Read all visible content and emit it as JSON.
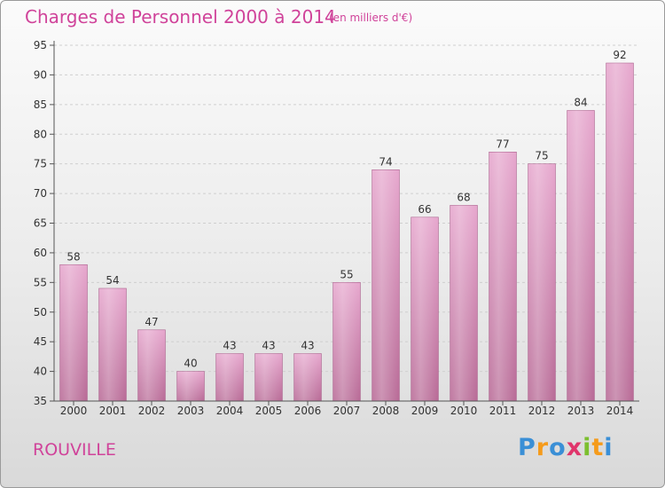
{
  "title": "Charges de Personnel 2000 à 2014",
  "subtitle": "(en milliers d'€)",
  "commune": "ROUVILLE",
  "logo": {
    "letters": [
      "P",
      "r",
      "o",
      "x",
      "i",
      "t",
      "i"
    ],
    "colors": [
      "#3a8fd6",
      "#f59b1b",
      "#3a8fd6",
      "#e0356b",
      "#7cbf2f",
      "#f59b1b",
      "#3a8fd6"
    ]
  },
  "colors": {
    "bar": "#d97fb4",
    "accent": "#d0439a"
  },
  "chart_data": {
    "type": "bar",
    "title": "Charges de Personnel 2000 à 2014",
    "subtitle": "(en milliers d'€)",
    "xlabel": "",
    "ylabel": "",
    "categories": [
      "2000",
      "2001",
      "2002",
      "2003",
      "2004",
      "2005",
      "2006",
      "2007",
      "2008",
      "2009",
      "2010",
      "2011",
      "2012",
      "2013",
      "2014"
    ],
    "values": [
      58,
      54,
      47,
      40,
      43,
      43,
      43,
      55,
      74,
      66,
      68,
      77,
      75,
      84,
      92
    ],
    "ylim": [
      35,
      95
    ],
    "yticks": [
      35,
      40,
      45,
      50,
      55,
      60,
      65,
      70,
      75,
      80,
      85,
      90,
      95
    ],
    "grid": true
  }
}
